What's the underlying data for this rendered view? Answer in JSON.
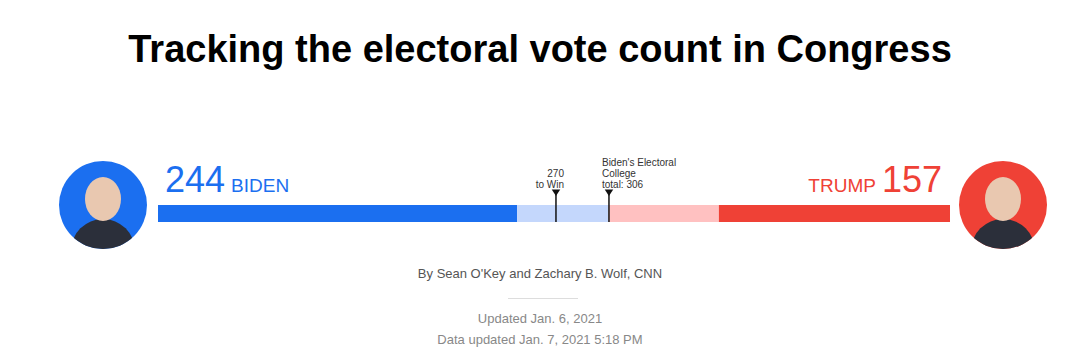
{
  "chart_data": {
    "type": "bar",
    "orientation": "horizontal",
    "stacked": true,
    "title": "Tracking the electoral vote count in Congress",
    "byline": "By Sean O'Key and Zachary B. Wolf, CNN",
    "updated": "Updated Jan. 6, 2021",
    "data_updated": "Data updated Jan. 7, 2021 5:18 PM",
    "xlim": [
      0,
      538
    ],
    "tick_labels": false,
    "values": [
      244,
      62,
      75,
      157
    ],
    "colors": [
      "#1b6ff0",
      "#c4d7fc",
      "#ffc1c1",
      "#ef4136"
    ],
    "candidates": [
      {
        "name": "BIDEN",
        "votes": 244,
        "color": "#1b6ff0"
      },
      {
        "name": "TRUMP",
        "votes": 157,
        "color": "#ef4136"
      }
    ],
    "markers": [
      {
        "value": 270,
        "lines": [
          "270",
          "to Win"
        ]
      },
      {
        "value": 306,
        "lines": [
          "Biden's Electoral",
          "College",
          "total: 306"
        ]
      }
    ]
  }
}
